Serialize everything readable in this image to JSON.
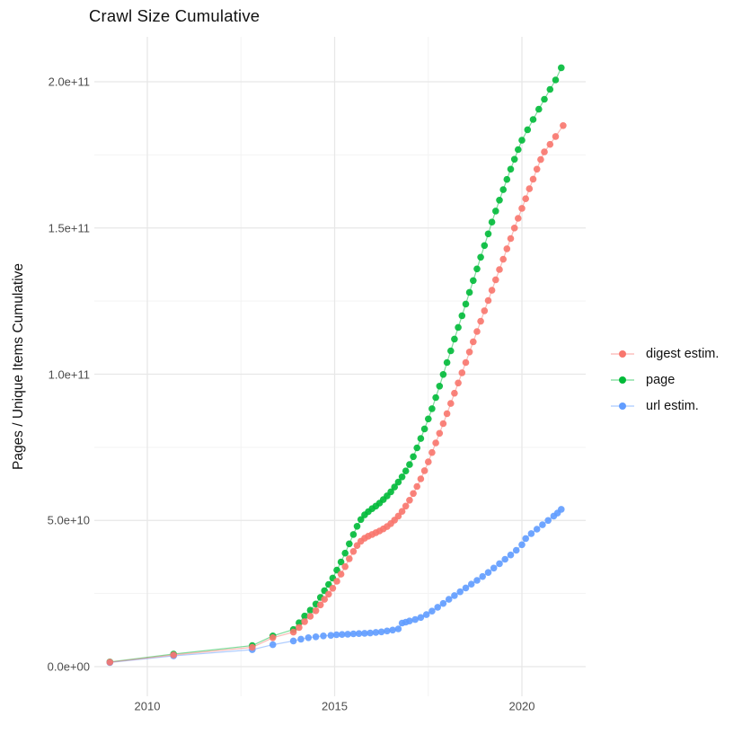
{
  "title": "Crawl Size Cumulative",
  "chart_data": {
    "type": "line",
    "style": "scatter-line (R ggplot2, points with thin connecting lines)",
    "title": "Crawl Size Cumulative",
    "xlabel": "",
    "ylabel": "Pages / Unique Items Cumulative",
    "value_unit": "1e9 (billions); plotted axis shows scientific notation",
    "xlim": [
      2008.6,
      2021.7
    ],
    "ylim": [
      -10,
      215
    ],
    "grid": "major and minor gridlines, light grey on white, no panel border",
    "legend_position": "right, middle",
    "x_axis": {
      "major_ticks": [
        {
          "label": "2010",
          "value": 2010
        },
        {
          "label": "2015",
          "value": 2015
        },
        {
          "label": "2020",
          "value": 2020
        }
      ],
      "minor_ticks": [
        2012.5,
        2017.5
      ]
    },
    "y_axis": {
      "major_ticks": [
        {
          "label": "0.0e+00",
          "value": 0
        },
        {
          "label": "5.0e+10",
          "value": 50
        },
        {
          "label": "1.0e+11",
          "value": 100
        },
        {
          "label": "1.5e+11",
          "value": 150
        },
        {
          "label": "2.0e+11",
          "value": 200
        }
      ],
      "minor_ticks": [
        25,
        75,
        125,
        175
      ]
    },
    "series": [
      {
        "name": "digest estim.",
        "color": "#F8766D",
        "points": [
          [
            2009.0,
            1.5
          ],
          [
            2010.7,
            4.0
          ],
          [
            2012.8,
            6.6
          ],
          [
            2013.35,
            9.9
          ],
          [
            2013.9,
            11.8
          ],
          [
            2014.05,
            13.4
          ],
          [
            2014.2,
            15.4
          ],
          [
            2014.35,
            17.2
          ],
          [
            2014.5,
            19.1
          ],
          [
            2014.62,
            21.1
          ],
          [
            2014.73,
            23.0
          ],
          [
            2014.84,
            24.8
          ],
          [
            2014.95,
            26.8
          ],
          [
            2015.06,
            29.2
          ],
          [
            2015.17,
            31.6
          ],
          [
            2015.28,
            34.2
          ],
          [
            2015.39,
            36.9
          ],
          [
            2015.5,
            39.4
          ],
          [
            2015.6,
            41.4
          ],
          [
            2015.7,
            42.9
          ],
          [
            2015.8,
            43.9
          ],
          [
            2015.9,
            44.6
          ],
          [
            2016.0,
            45.2
          ],
          [
            2016.1,
            45.8
          ],
          [
            2016.2,
            46.4
          ],
          [
            2016.3,
            47.1
          ],
          [
            2016.4,
            47.9
          ],
          [
            2016.5,
            48.9
          ],
          [
            2016.6,
            50.1
          ],
          [
            2016.7,
            51.5
          ],
          [
            2016.8,
            53.1
          ],
          [
            2016.9,
            54.9
          ],
          [
            2017.0,
            56.9
          ],
          [
            2017.1,
            59.2
          ],
          [
            2017.2,
            61.6
          ],
          [
            2017.3,
            64.2
          ],
          [
            2017.4,
            67.0
          ],
          [
            2017.5,
            70.0
          ],
          [
            2017.6,
            73.2
          ],
          [
            2017.7,
            76.5
          ],
          [
            2017.8,
            79.8
          ],
          [
            2017.9,
            83.1
          ],
          [
            2018.0,
            86.5
          ],
          [
            2018.1,
            90.0
          ],
          [
            2018.2,
            93.5
          ],
          [
            2018.3,
            97.0
          ],
          [
            2018.4,
            100.5
          ],
          [
            2018.5,
            104.0
          ],
          [
            2018.6,
            107.6
          ],
          [
            2018.7,
            111.1
          ],
          [
            2018.8,
            114.6
          ],
          [
            2018.9,
            118.1
          ],
          [
            2019.0,
            121.7
          ],
          [
            2019.1,
            125.2
          ],
          [
            2019.2,
            128.7
          ],
          [
            2019.3,
            132.3
          ],
          [
            2019.4,
            135.8
          ],
          [
            2019.5,
            139.3
          ],
          [
            2019.6,
            142.9
          ],
          [
            2019.7,
            146.4
          ],
          [
            2019.8,
            150.0
          ],
          [
            2019.9,
            153.3
          ],
          [
            2020.0,
            156.7
          ],
          [
            2020.1,
            160.0
          ],
          [
            2020.2,
            163.4
          ],
          [
            2020.3,
            166.7
          ],
          [
            2020.4,
            170.1
          ],
          [
            2020.5,
            173.4
          ],
          [
            2020.6,
            176.0
          ],
          [
            2020.75,
            178.6
          ],
          [
            2020.9,
            181.3
          ],
          [
            2021.1,
            185.0
          ]
        ]
      },
      {
        "name": "page",
        "color": "#00BA38",
        "points": [
          [
            2009.0,
            1.6
          ],
          [
            2010.7,
            4.3
          ],
          [
            2012.8,
            7.2
          ],
          [
            2013.35,
            10.5
          ],
          [
            2013.9,
            12.7
          ],
          [
            2014.05,
            15.0
          ],
          [
            2014.2,
            17.3
          ],
          [
            2014.35,
            19.3
          ],
          [
            2014.5,
            21.4
          ],
          [
            2014.62,
            23.7
          ],
          [
            2014.73,
            26.0
          ],
          [
            2014.84,
            28.1
          ],
          [
            2014.95,
            30.3
          ],
          [
            2015.06,
            33.0
          ],
          [
            2015.17,
            35.8
          ],
          [
            2015.28,
            38.8
          ],
          [
            2015.39,
            42.0
          ],
          [
            2015.5,
            45.2
          ],
          [
            2015.6,
            48.0
          ],
          [
            2015.7,
            50.3
          ],
          [
            2015.8,
            51.9
          ],
          [
            2015.9,
            53.0
          ],
          [
            2016.0,
            54.0
          ],
          [
            2016.1,
            54.9
          ],
          [
            2016.2,
            55.9
          ],
          [
            2016.3,
            57.1
          ],
          [
            2016.4,
            58.4
          ],
          [
            2016.5,
            59.8
          ],
          [
            2016.6,
            61.4
          ],
          [
            2016.7,
            63.1
          ],
          [
            2016.8,
            64.9
          ],
          [
            2016.9,
            66.9
          ],
          [
            2017.0,
            69.1
          ],
          [
            2017.1,
            71.8
          ],
          [
            2017.2,
            74.8
          ],
          [
            2017.3,
            78.0
          ],
          [
            2017.4,
            81.3
          ],
          [
            2017.5,
            84.7
          ],
          [
            2017.6,
            88.2
          ],
          [
            2017.7,
            92.0
          ],
          [
            2017.8,
            95.9
          ],
          [
            2017.9,
            99.9
          ],
          [
            2018.0,
            104.0
          ],
          [
            2018.1,
            108.0
          ],
          [
            2018.2,
            112.0
          ],
          [
            2018.3,
            116.0
          ],
          [
            2018.4,
            120.0
          ],
          [
            2018.5,
            124.0
          ],
          [
            2018.6,
            128.0
          ],
          [
            2018.7,
            132.0
          ],
          [
            2018.8,
            136.0
          ],
          [
            2018.9,
            140.0
          ],
          [
            2019.0,
            144.0
          ],
          [
            2019.1,
            148.0
          ],
          [
            2019.2,
            152.0
          ],
          [
            2019.3,
            155.8
          ],
          [
            2019.4,
            159.5
          ],
          [
            2019.5,
            163.1
          ],
          [
            2019.6,
            166.6
          ],
          [
            2019.7,
            170.1
          ],
          [
            2019.8,
            173.5
          ],
          [
            2019.9,
            176.8
          ],
          [
            2020.0,
            180.0
          ],
          [
            2020.15,
            183.6
          ],
          [
            2020.3,
            187.1
          ],
          [
            2020.45,
            190.6
          ],
          [
            2020.6,
            194.0
          ],
          [
            2020.75,
            197.4
          ],
          [
            2020.9,
            200.6
          ],
          [
            2021.05,
            204.8
          ]
        ]
      },
      {
        "name": "url estim.",
        "color": "#619CFF",
        "points": [
          [
            2009.0,
            1.4
          ],
          [
            2010.7,
            3.7
          ],
          [
            2012.8,
            5.8
          ],
          [
            2013.35,
            7.5
          ],
          [
            2013.9,
            8.8
          ],
          [
            2014.1,
            9.4
          ],
          [
            2014.3,
            9.9
          ],
          [
            2014.5,
            10.2
          ],
          [
            2014.7,
            10.5
          ],
          [
            2014.9,
            10.7
          ],
          [
            2015.05,
            10.9
          ],
          [
            2015.2,
            11.0
          ],
          [
            2015.35,
            11.1
          ],
          [
            2015.5,
            11.2
          ],
          [
            2015.65,
            11.3
          ],
          [
            2015.8,
            11.4
          ],
          [
            2015.95,
            11.5
          ],
          [
            2016.1,
            11.7
          ],
          [
            2016.25,
            11.9
          ],
          [
            2016.4,
            12.2
          ],
          [
            2016.55,
            12.5
          ],
          [
            2016.7,
            12.9
          ],
          [
            2016.8,
            14.9
          ],
          [
            2016.9,
            15.2
          ],
          [
            2017.0,
            15.6
          ],
          [
            2017.15,
            16.1
          ],
          [
            2017.3,
            16.8
          ],
          [
            2017.45,
            17.8
          ],
          [
            2017.6,
            19.0
          ],
          [
            2017.75,
            20.3
          ],
          [
            2017.9,
            21.6
          ],
          [
            2018.05,
            23.0
          ],
          [
            2018.2,
            24.3
          ],
          [
            2018.35,
            25.6
          ],
          [
            2018.5,
            26.9
          ],
          [
            2018.65,
            28.2
          ],
          [
            2018.8,
            29.5
          ],
          [
            2018.95,
            30.8
          ],
          [
            2019.1,
            32.2
          ],
          [
            2019.25,
            33.7
          ],
          [
            2019.4,
            35.2
          ],
          [
            2019.55,
            36.7
          ],
          [
            2019.7,
            38.2
          ],
          [
            2019.85,
            39.8
          ],
          [
            2020.0,
            41.7
          ],
          [
            2020.1,
            43.8
          ],
          [
            2020.25,
            45.5
          ],
          [
            2020.4,
            47.0
          ],
          [
            2020.55,
            48.5
          ],
          [
            2020.7,
            50.0
          ],
          [
            2020.85,
            51.5
          ],
          [
            2020.95,
            52.5
          ],
          [
            2021.05,
            53.8
          ]
        ]
      }
    ]
  }
}
